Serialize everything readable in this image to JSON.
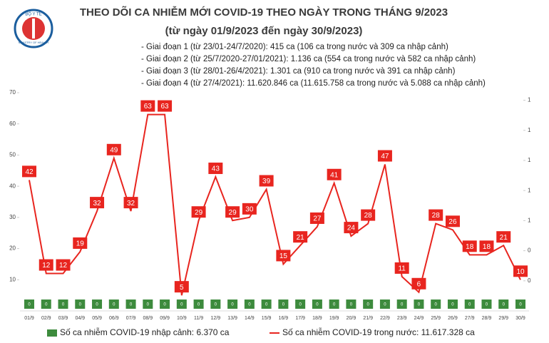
{
  "logo": {
    "top": "BỘ Y TẾ",
    "bottom": "MINISTRY OF HEALTH"
  },
  "chart_data": {
    "type": "line",
    "title": "THEO DÕI CA NHIỄM MỚI COVID-19 THEO NGÀY TRONG THÁNG 9/2023",
    "subtitle": "(từ ngày 01/9/2023 đến ngày 30/9/2023)",
    "annotations": [
      "- Giai đoạn 1 (từ 23/01-24/7/2020): 415 ca (106 ca trong nước và 309 ca nhập cảnh)",
      "- Giai đoạn 2 (từ 25/7/2020-27/01/2021): 1.136 ca (554 ca trong nước và 582 ca nhập cảnh)",
      "- Giai đoạn 3 (từ 28/01-26/4/2021): 1.301 ca (910 ca trong nước và 391 ca nhập cảnh)",
      "- Giai đoạn 4 (từ 27/4/2021): 11.620.846 ca (11.615.758 ca trong nước và 5.088 ca nhập cảnh)"
    ],
    "categories": [
      "01/9",
      "02/9",
      "03/9",
      "04/9",
      "05/9",
      "06/9",
      "07/9",
      "08/9",
      "09/9",
      "10/9",
      "11/9",
      "12/9",
      "13/9",
      "14/9",
      "15/9",
      "16/9",
      "17/9",
      "18/9",
      "19/9",
      "20/9",
      "21/9",
      "22/9",
      "23/9",
      "24/9",
      "25/9",
      "26/9",
      "27/9",
      "28/9",
      "29/9",
      "30/9"
    ],
    "series": [
      {
        "name": "Số ca nhiễm COVID-19 nhập cảnh: 6.370 ca",
        "color": "#3d8b3d",
        "axis": "y2",
        "values": [
          0,
          0,
          0,
          0,
          0,
          0,
          0,
          0,
          0,
          0,
          0,
          0,
          0,
          0,
          0,
          0,
          0,
          0,
          0,
          0,
          0,
          0,
          0,
          0,
          0,
          0,
          0,
          0,
          0,
          0
        ]
      },
      {
        "name": "Số ca nhiễm COVID-19 trong nước: 11.617.328 ca",
        "color": "#e8251f",
        "values": [
          42,
          12,
          12,
          19,
          32,
          49,
          32,
          63,
          63,
          5,
          29,
          43,
          29,
          30,
          39,
          15,
          21,
          27,
          41,
          24,
          28,
          47,
          11,
          6,
          28,
          26,
          18,
          18,
          21,
          10
        ]
      }
    ],
    "ylim": [
      0,
      70
    ],
    "yticks": [
      10,
      20,
      30,
      40,
      50,
      60,
      70
    ],
    "y2lim": [
      0,
      1.45
    ],
    "y2ticks": [
      {
        "value": 0.2,
        "label": "0"
      },
      {
        "value": 0.4,
        "label": "0"
      },
      {
        "value": 0.6,
        "label": "1"
      },
      {
        "value": 0.8,
        "label": "1"
      },
      {
        "value": 1.0,
        "label": "1"
      },
      {
        "value": 1.2,
        "label": "1"
      },
      {
        "value": 1.4,
        "label": "1"
      }
    ],
    "grid": false
  }
}
